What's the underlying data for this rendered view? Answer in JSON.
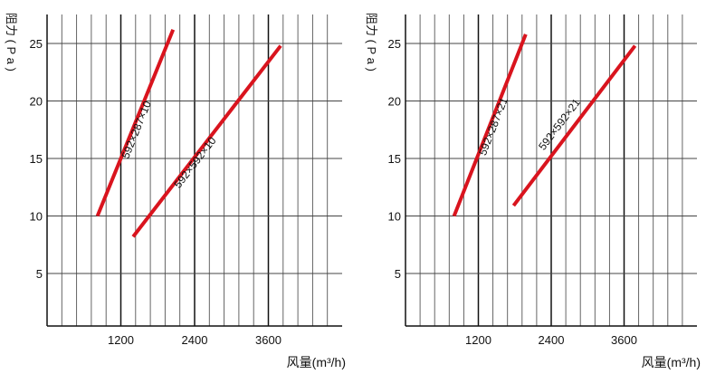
{
  "chart_data": [
    {
      "type": "line",
      "ylabel": "阻力 ( P a )",
      "xlabel": "风量(m³/h)",
      "x_ticks": [
        1200,
        2400,
        3600
      ],
      "y_ticks": [
        5,
        10,
        15,
        20,
        25
      ],
      "xlim": [
        0,
        4800
      ],
      "ylim": [
        0,
        28
      ],
      "grid": true,
      "line_color": "#d9141e",
      "series": [
        {
          "name": "592×287×10",
          "x": [
            820,
            2050
          ],
          "y": [
            10,
            26.2
          ]
        },
        {
          "name": "592×592×10",
          "x": [
            1400,
            3800
          ],
          "y": [
            8.2,
            24.8
          ]
        }
      ]
    },
    {
      "type": "line",
      "ylabel": "阻力 ( P a )",
      "xlabel": "风量(m³/h)",
      "x_ticks": [
        1200,
        2400,
        3600
      ],
      "y_ticks": [
        5,
        10,
        15,
        20,
        25
      ],
      "xlim": [
        0,
        4800
      ],
      "ylim": [
        0,
        28
      ],
      "grid": true,
      "line_color": "#d9141e",
      "series": [
        {
          "name": "592×287×21",
          "x": [
            800,
            1980
          ],
          "y": [
            10,
            25.8
          ]
        },
        {
          "name": "592×592×21",
          "x": [
            1780,
            3780
          ],
          "y": [
            10.9,
            24.8
          ]
        }
      ]
    }
  ]
}
